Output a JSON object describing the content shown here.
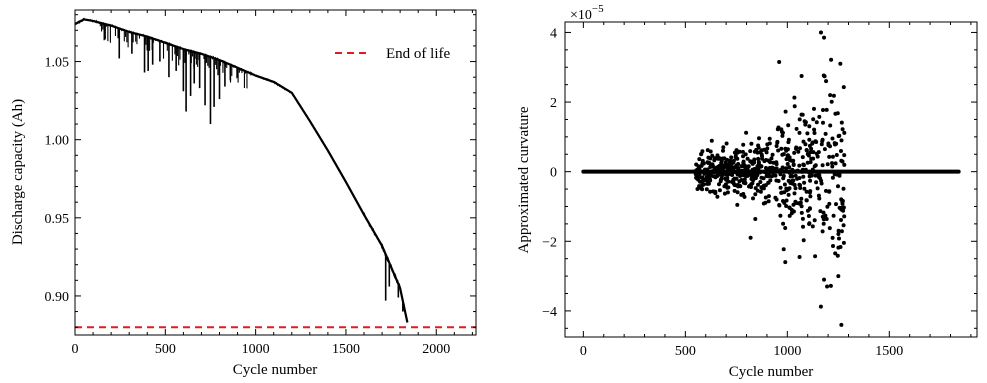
{
  "chart_data": [
    {
      "type": "line",
      "xlabel": "Cycle number",
      "ylabel": "Discharge capacity (Ah)",
      "xlim": [
        0,
        2220
      ],
      "ylim": [
        0.875,
        1.083
      ],
      "xticks": [
        0,
        500,
        1000,
        1500,
        2000
      ],
      "xtick_labels": [
        "0",
        "500",
        "1000",
        "1500",
        "2000"
      ],
      "yticks": [
        0.9,
        0.95,
        1.0,
        1.05
      ],
      "ytick_labels": [
        "0.90",
        "0.95",
        "1.00",
        "1.05"
      ],
      "series": [
        {
          "name": "",
          "color": "#000000",
          "x": [
            0,
            50,
            100,
            200,
            300,
            400,
            500,
            600,
            700,
            800,
            900,
            1000,
            1100,
            1200,
            1300,
            1400,
            1500,
            1600,
            1700,
            1800,
            1840
          ],
          "y": [
            1.074,
            1.077,
            1.076,
            1.073,
            1.069,
            1.066,
            1.062,
            1.058,
            1.055,
            1.051,
            1.046,
            1.041,
            1.037,
            1.03,
            1.012,
            0.993,
            0.973,
            0.952,
            0.932,
            0.905,
            0.883
          ]
        }
      ],
      "dips": [
        {
          "x": 165,
          "y": 1.064
        },
        {
          "x": 245,
          "y": 1.052
        },
        {
          "x": 315,
          "y": 1.055
        },
        {
          "x": 385,
          "y": 1.043
        },
        {
          "x": 405,
          "y": 1.044
        },
        {
          "x": 430,
          "y": 1.048
        },
        {
          "x": 470,
          "y": 1.05
        },
        {
          "x": 520,
          "y": 1.04
        },
        {
          "x": 560,
          "y": 1.044
        },
        {
          "x": 600,
          "y": 1.031
        },
        {
          "x": 615,
          "y": 1.018
        },
        {
          "x": 640,
          "y": 1.028
        },
        {
          "x": 660,
          "y": 1.036
        },
        {
          "x": 690,
          "y": 1.033
        },
        {
          "x": 720,
          "y": 1.022
        },
        {
          "x": 750,
          "y": 1.01
        },
        {
          "x": 770,
          "y": 1.021
        },
        {
          "x": 800,
          "y": 1.026
        },
        {
          "x": 830,
          "y": 1.034
        },
        {
          "x": 860,
          "y": 1.038
        },
        {
          "x": 900,
          "y": 1.04
        },
        {
          "x": 940,
          "y": 1.042
        },
        {
          "x": 1660,
          "y": 0.939
        },
        {
          "x": 1720,
          "y": 0.897
        },
        {
          "x": 1740,
          "y": 0.906
        },
        {
          "x": 1790,
          "y": 0.899
        },
        {
          "x": 1815,
          "y": 0.89
        }
      ],
      "hline": {
        "y": 0.88,
        "color": "#e41a1c",
        "style": "dashed",
        "label": "End of life"
      },
      "legend": {
        "position": "top-right",
        "entries": [
          "End of life"
        ]
      }
    },
    {
      "type": "scatter",
      "xlabel": "Cycle number",
      "ylabel": "Approximated curvature",
      "scale_label": "×10",
      "scale_exponent": "−5",
      "xlim": [
        -90,
        1930
      ],
      "ylim": [
        -4.75,
        4.3
      ],
      "xticks": [
        0,
        500,
        1000,
        1500
      ],
      "xtick_labels": [
        "0",
        "500",
        "1000",
        "1500"
      ],
      "yticks": [
        -4,
        -2,
        0,
        2,
        4
      ],
      "ytick_labels": [
        "−4",
        "−2",
        "0",
        "2",
        "4"
      ],
      "baseline": {
        "x_start": 0,
        "x_end": 1840,
        "y": 0
      },
      "scatter_region": {
        "x_start": 550,
        "x_end": 1280
      },
      "marker_color": "#000000",
      "notable_points": [
        {
          "x": 1165,
          "y": 4.0
        },
        {
          "x": 1180,
          "y": 3.85
        },
        {
          "x": 960,
          "y": 3.15
        },
        {
          "x": 1260,
          "y": 3.1
        },
        {
          "x": 1190,
          "y": 2.6
        },
        {
          "x": 1070,
          "y": 2.75
        },
        {
          "x": 1210,
          "y": 2.2
        },
        {
          "x": 1265,
          "y": -4.4
        },
        {
          "x": 1195,
          "y": -3.3
        },
        {
          "x": 1180,
          "y": -3.1
        },
        {
          "x": 1250,
          "y": -3.0
        },
        {
          "x": 990,
          "y": -2.6
        },
        {
          "x": 1060,
          "y": -2.45
        },
        {
          "x": 820,
          "y": -1.9
        }
      ]
    }
  ]
}
